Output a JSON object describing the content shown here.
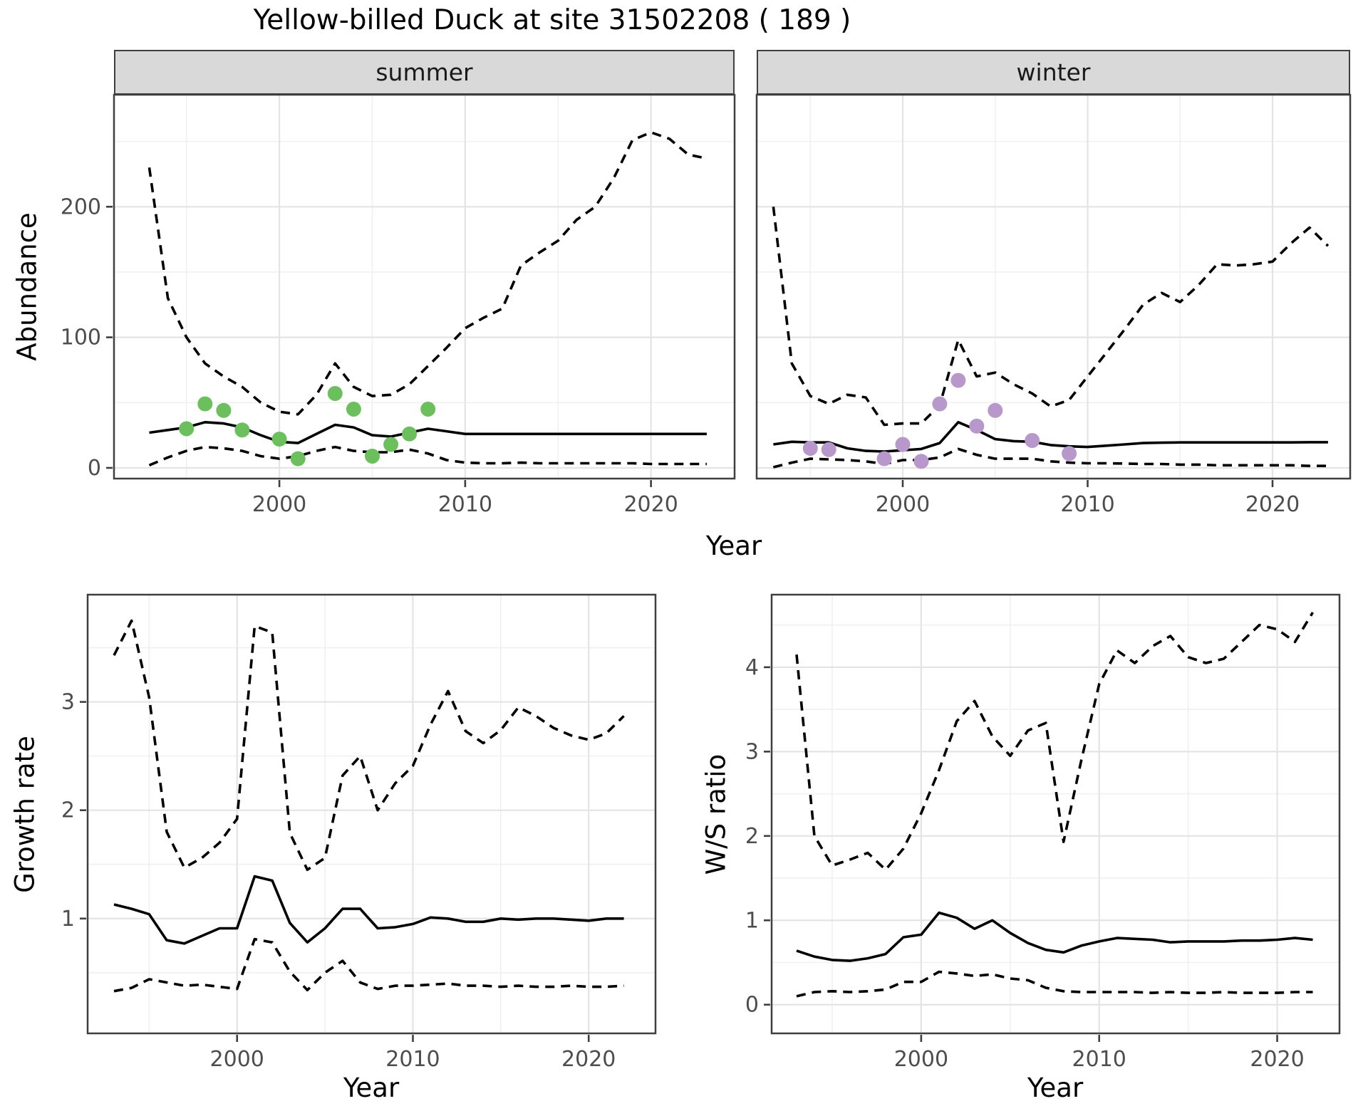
{
  "title": "Yellow-billed Duck at site 31502208 ( 189 )",
  "facets": {
    "summer_label": "summer",
    "winter_label": "winter"
  },
  "axes": {
    "abundance_label": "Abundance",
    "growth_label": "Growth rate",
    "ws_label": "W/S ratio",
    "year_label": "Year"
  },
  "colors": {
    "line": "#000000",
    "summer_point": "#6cbf5d",
    "winter_point": "#b897ca",
    "grid_major": "#e4e4e4",
    "grid_minor": "#f0f0f0",
    "panel_border": "#3f3f3f",
    "strip_bg": "#d9d9d9",
    "tick_label": "#4d4d4d"
  },
  "chart_data": [
    {
      "id": "abundance-summer",
      "type": "line",
      "facet": "summer",
      "title": "",
      "xlabel": "Year",
      "ylabel": "Abundance",
      "grid": true,
      "legend": "none",
      "xlim": [
        1991.1,
        2024.5
      ],
      "ylim": [
        -8.2,
        285.8
      ],
      "xticks": [
        2000,
        2010,
        2020
      ],
      "yticks": [
        0,
        100,
        200
      ],
      "xminor": [
        1995,
        2005,
        2015
      ],
      "yminor": [
        50,
        150,
        250
      ],
      "show_ytick_labels": true,
      "x": [
        1993,
        1994,
        1995,
        1996,
        1997,
        1998,
        1999,
        2000,
        2001,
        2002,
        2003,
        2004,
        2005,
        2006,
        2007,
        2008,
        2009,
        2010,
        2011,
        2012,
        2013,
        2014,
        2015,
        2016,
        2017,
        2018,
        2019,
        2020,
        2021,
        2022,
        2023
      ],
      "series": [
        {
          "name": "median",
          "style": "solid",
          "values": [
            27,
            29,
            31,
            35,
            34,
            31,
            25,
            20,
            19,
            26,
            33,
            31,
            25,
            24,
            27,
            30,
            28,
            26,
            26,
            26,
            26,
            26,
            26,
            26,
            26,
            26,
            26,
            26,
            26,
            26,
            26
          ]
        },
        {
          "name": "upper-ci",
          "style": "dashed",
          "values": [
            230,
            130,
            100,
            80,
            70,
            62,
            50,
            43,
            41,
            56,
            80,
            62,
            55,
            56,
            64,
            78,
            92,
            107,
            115,
            122,
            155,
            165,
            174,
            190,
            200,
            222,
            251,
            257,
            252,
            240,
            237
          ]
        },
        {
          "name": "lower-ci",
          "style": "dashed",
          "values": [
            2,
            8,
            13,
            16,
            15,
            13,
            9,
            7,
            9,
            13,
            16,
            13,
            12,
            12,
            14,
            11,
            6,
            4,
            3.5,
            3.5,
            4,
            3.5,
            3.5,
            3.5,
            3.5,
            3.5,
            3.5,
            3,
            3,
            3,
            3
          ]
        }
      ],
      "points": {
        "name": "observed-counts",
        "color": "#6cbf5d",
        "xy": [
          [
            1995,
            30
          ],
          [
            1996,
            49
          ],
          [
            1997,
            44
          ],
          [
            1998,
            29
          ],
          [
            2000,
            22
          ],
          [
            2001,
            7
          ],
          [
            2003,
            57
          ],
          [
            2004,
            45
          ],
          [
            2005,
            9
          ],
          [
            2006,
            18
          ],
          [
            2007,
            26
          ],
          [
            2008,
            45
          ]
        ]
      }
    },
    {
      "id": "abundance-winter",
      "type": "line",
      "facet": "winter",
      "title": "",
      "xlabel": "Year",
      "ylabel": "Abundance",
      "grid": true,
      "legend": "none",
      "xlim": [
        1992.1,
        2024.2
      ],
      "ylim": [
        -8.2,
        285.8
      ],
      "xticks": [
        2000,
        2010,
        2020
      ],
      "yticks": [
        0,
        100,
        200
      ],
      "xminor": [
        1995,
        2005,
        2015
      ],
      "yminor": [
        50,
        150,
        250
      ],
      "show_ytick_labels": false,
      "x": [
        1993,
        1994,
        1995,
        1996,
        1997,
        1998,
        1999,
        2000,
        2001,
        2002,
        2003,
        2004,
        2005,
        2006,
        2007,
        2008,
        2009,
        2010,
        2011,
        2012,
        2013,
        2014,
        2015,
        2016,
        2017,
        2018,
        2019,
        2020,
        2021,
        2022,
        2023
      ],
      "series": [
        {
          "name": "median",
          "style": "solid",
          "values": [
            18,
            20,
            19.5,
            19.5,
            15,
            13,
            12.5,
            13.5,
            14.5,
            19,
            35,
            29,
            22,
            20.5,
            20,
            17.5,
            16.5,
            16,
            17,
            18,
            19,
            19.3,
            19.5,
            19.5,
            19.5,
            19.5,
            19.5,
            19.5,
            19.5,
            19.7,
            19.7
          ]
        },
        {
          "name": "upper-ci",
          "style": "dashed",
          "values": [
            200,
            80,
            55,
            49,
            56,
            54,
            33,
            34,
            34,
            48,
            98,
            70,
            73,
            64,
            57,
            47,
            52,
            70,
            88,
            106,
            125,
            134,
            127,
            140,
            156,
            155,
            156,
            158,
            172,
            184,
            170
          ]
        },
        {
          "name": "lower-ci",
          "style": "dashed",
          "values": [
            0.5,
            4,
            7,
            6.5,
            6,
            5,
            3,
            6,
            6,
            8,
            14.5,
            10,
            7,
            7,
            7,
            5,
            4,
            3.5,
            3.5,
            3.3,
            3,
            3,
            2.5,
            2.5,
            2,
            2,
            2,
            2,
            2,
            1.5,
            1.5
          ]
        }
      ],
      "points": {
        "name": "observed-counts",
        "color": "#b897ca",
        "xy": [
          [
            1995,
            15
          ],
          [
            1996,
            14
          ],
          [
            1999,
            7
          ],
          [
            2000,
            18
          ],
          [
            2001,
            5
          ],
          [
            2002,
            49
          ],
          [
            2003,
            67
          ],
          [
            2004,
            32
          ],
          [
            2005,
            44
          ],
          [
            2007,
            21
          ],
          [
            2009,
            11
          ]
        ]
      }
    },
    {
      "id": "growth-rate",
      "type": "line",
      "facet": "",
      "title": "",
      "xlabel": "Year",
      "ylabel": "Growth rate",
      "grid": true,
      "legend": "none",
      "xlim": [
        1991.5,
        2023.8
      ],
      "ylim": [
        -0.06,
        3.99
      ],
      "xticks": [
        2000,
        2010,
        2020
      ],
      "yticks": [
        1,
        2,
        3
      ],
      "xminor": [
        1995,
        2005,
        2015
      ],
      "yminor": [
        0.5,
        1.5,
        2.5,
        3.5
      ],
      "show_ytick_labels": true,
      "x": [
        1993,
        1994,
        1995,
        1996,
        1997,
        1998,
        1999,
        2000,
        2001,
        2002,
        2003,
        2004,
        2005,
        2006,
        2007,
        2008,
        2009,
        2010,
        2011,
        2012,
        2013,
        2014,
        2015,
        2016,
        2017,
        2018,
        2019,
        2020,
        2021,
        2022
      ],
      "series": [
        {
          "name": "median",
          "style": "solid",
          "values": [
            1.13,
            1.09,
            1.04,
            0.8,
            0.77,
            0.84,
            0.91,
            0.91,
            1.39,
            1.35,
            0.96,
            0.78,
            0.91,
            1.09,
            1.09,
            0.91,
            0.92,
            0.95,
            1.01,
            1.0,
            0.97,
            0.97,
            1.0,
            0.99,
            1.0,
            1.0,
            0.99,
            0.98,
            1.0,
            1.0
          ]
        },
        {
          "name": "upper-ci",
          "style": "dashed",
          "values": [
            3.43,
            3.75,
            3.04,
            1.8,
            1.47,
            1.56,
            1.7,
            1.92,
            3.7,
            3.64,
            1.79,
            1.45,
            1.56,
            2.32,
            2.5,
            2.0,
            2.25,
            2.41,
            2.79,
            3.1,
            2.73,
            2.62,
            2.74,
            2.95,
            2.87,
            2.76,
            2.69,
            2.65,
            2.71,
            2.87
          ]
        },
        {
          "name": "lower-ci",
          "style": "dashed",
          "values": [
            0.33,
            0.36,
            0.44,
            0.41,
            0.38,
            0.39,
            0.37,
            0.35,
            0.81,
            0.78,
            0.51,
            0.34,
            0.5,
            0.61,
            0.41,
            0.35,
            0.38,
            0.38,
            0.39,
            0.4,
            0.38,
            0.38,
            0.37,
            0.38,
            0.37,
            0.37,
            0.38,
            0.37,
            0.37,
            0.38
          ]
        }
      ],
      "points": null
    },
    {
      "id": "ws-ratio",
      "type": "line",
      "facet": "",
      "title": "",
      "xlabel": "Year",
      "ylabel": "W/S ratio",
      "grid": true,
      "legend": "none",
      "xlim": [
        1991.6,
        2023.5
      ],
      "ylim": [
        -0.34,
        4.86
      ],
      "xticks": [
        2000,
        2010,
        2020
      ],
      "yticks": [
        0,
        1,
        2,
        3,
        4
      ],
      "xminor": [
        1995,
        2005,
        2015
      ],
      "yminor": [
        0.5,
        1.5,
        2.5,
        3.5,
        4.5
      ],
      "show_ytick_labels": true,
      "x": [
        1993,
        1994,
        1995,
        1996,
        1997,
        1998,
        1999,
        2000,
        2001,
        2002,
        2003,
        2004,
        2005,
        2006,
        2007,
        2008,
        2009,
        2010,
        2011,
        2012,
        2013,
        2014,
        2015,
        2016,
        2017,
        2018,
        2019,
        2020,
        2021,
        2022
      ],
      "series": [
        {
          "name": "median",
          "style": "solid",
          "values": [
            0.64,
            0.57,
            0.53,
            0.52,
            0.55,
            0.6,
            0.8,
            0.83,
            1.09,
            1.03,
            0.9,
            1.0,
            0.85,
            0.73,
            0.65,
            0.62,
            0.7,
            0.75,
            0.79,
            0.78,
            0.77,
            0.74,
            0.75,
            0.75,
            0.75,
            0.76,
            0.76,
            0.77,
            0.79,
            0.77
          ]
        },
        {
          "name": "upper-ci",
          "style": "dashed",
          "values": [
            4.15,
            2.0,
            1.65,
            1.72,
            1.8,
            1.6,
            1.85,
            2.27,
            2.78,
            3.36,
            3.6,
            3.18,
            2.95,
            3.25,
            3.34,
            1.93,
            2.9,
            3.8,
            4.2,
            4.05,
            4.25,
            4.37,
            4.12,
            4.05,
            4.1,
            4.3,
            4.5,
            4.45,
            4.3,
            4.65
          ]
        },
        {
          "name": "lower-ci",
          "style": "dashed",
          "values": [
            0.1,
            0.15,
            0.16,
            0.15,
            0.16,
            0.18,
            0.27,
            0.27,
            0.39,
            0.37,
            0.34,
            0.36,
            0.31,
            0.29,
            0.2,
            0.16,
            0.15,
            0.15,
            0.15,
            0.15,
            0.14,
            0.15,
            0.14,
            0.14,
            0.15,
            0.14,
            0.14,
            0.14,
            0.15,
            0.15
          ]
        }
      ],
      "points": null
    }
  ]
}
